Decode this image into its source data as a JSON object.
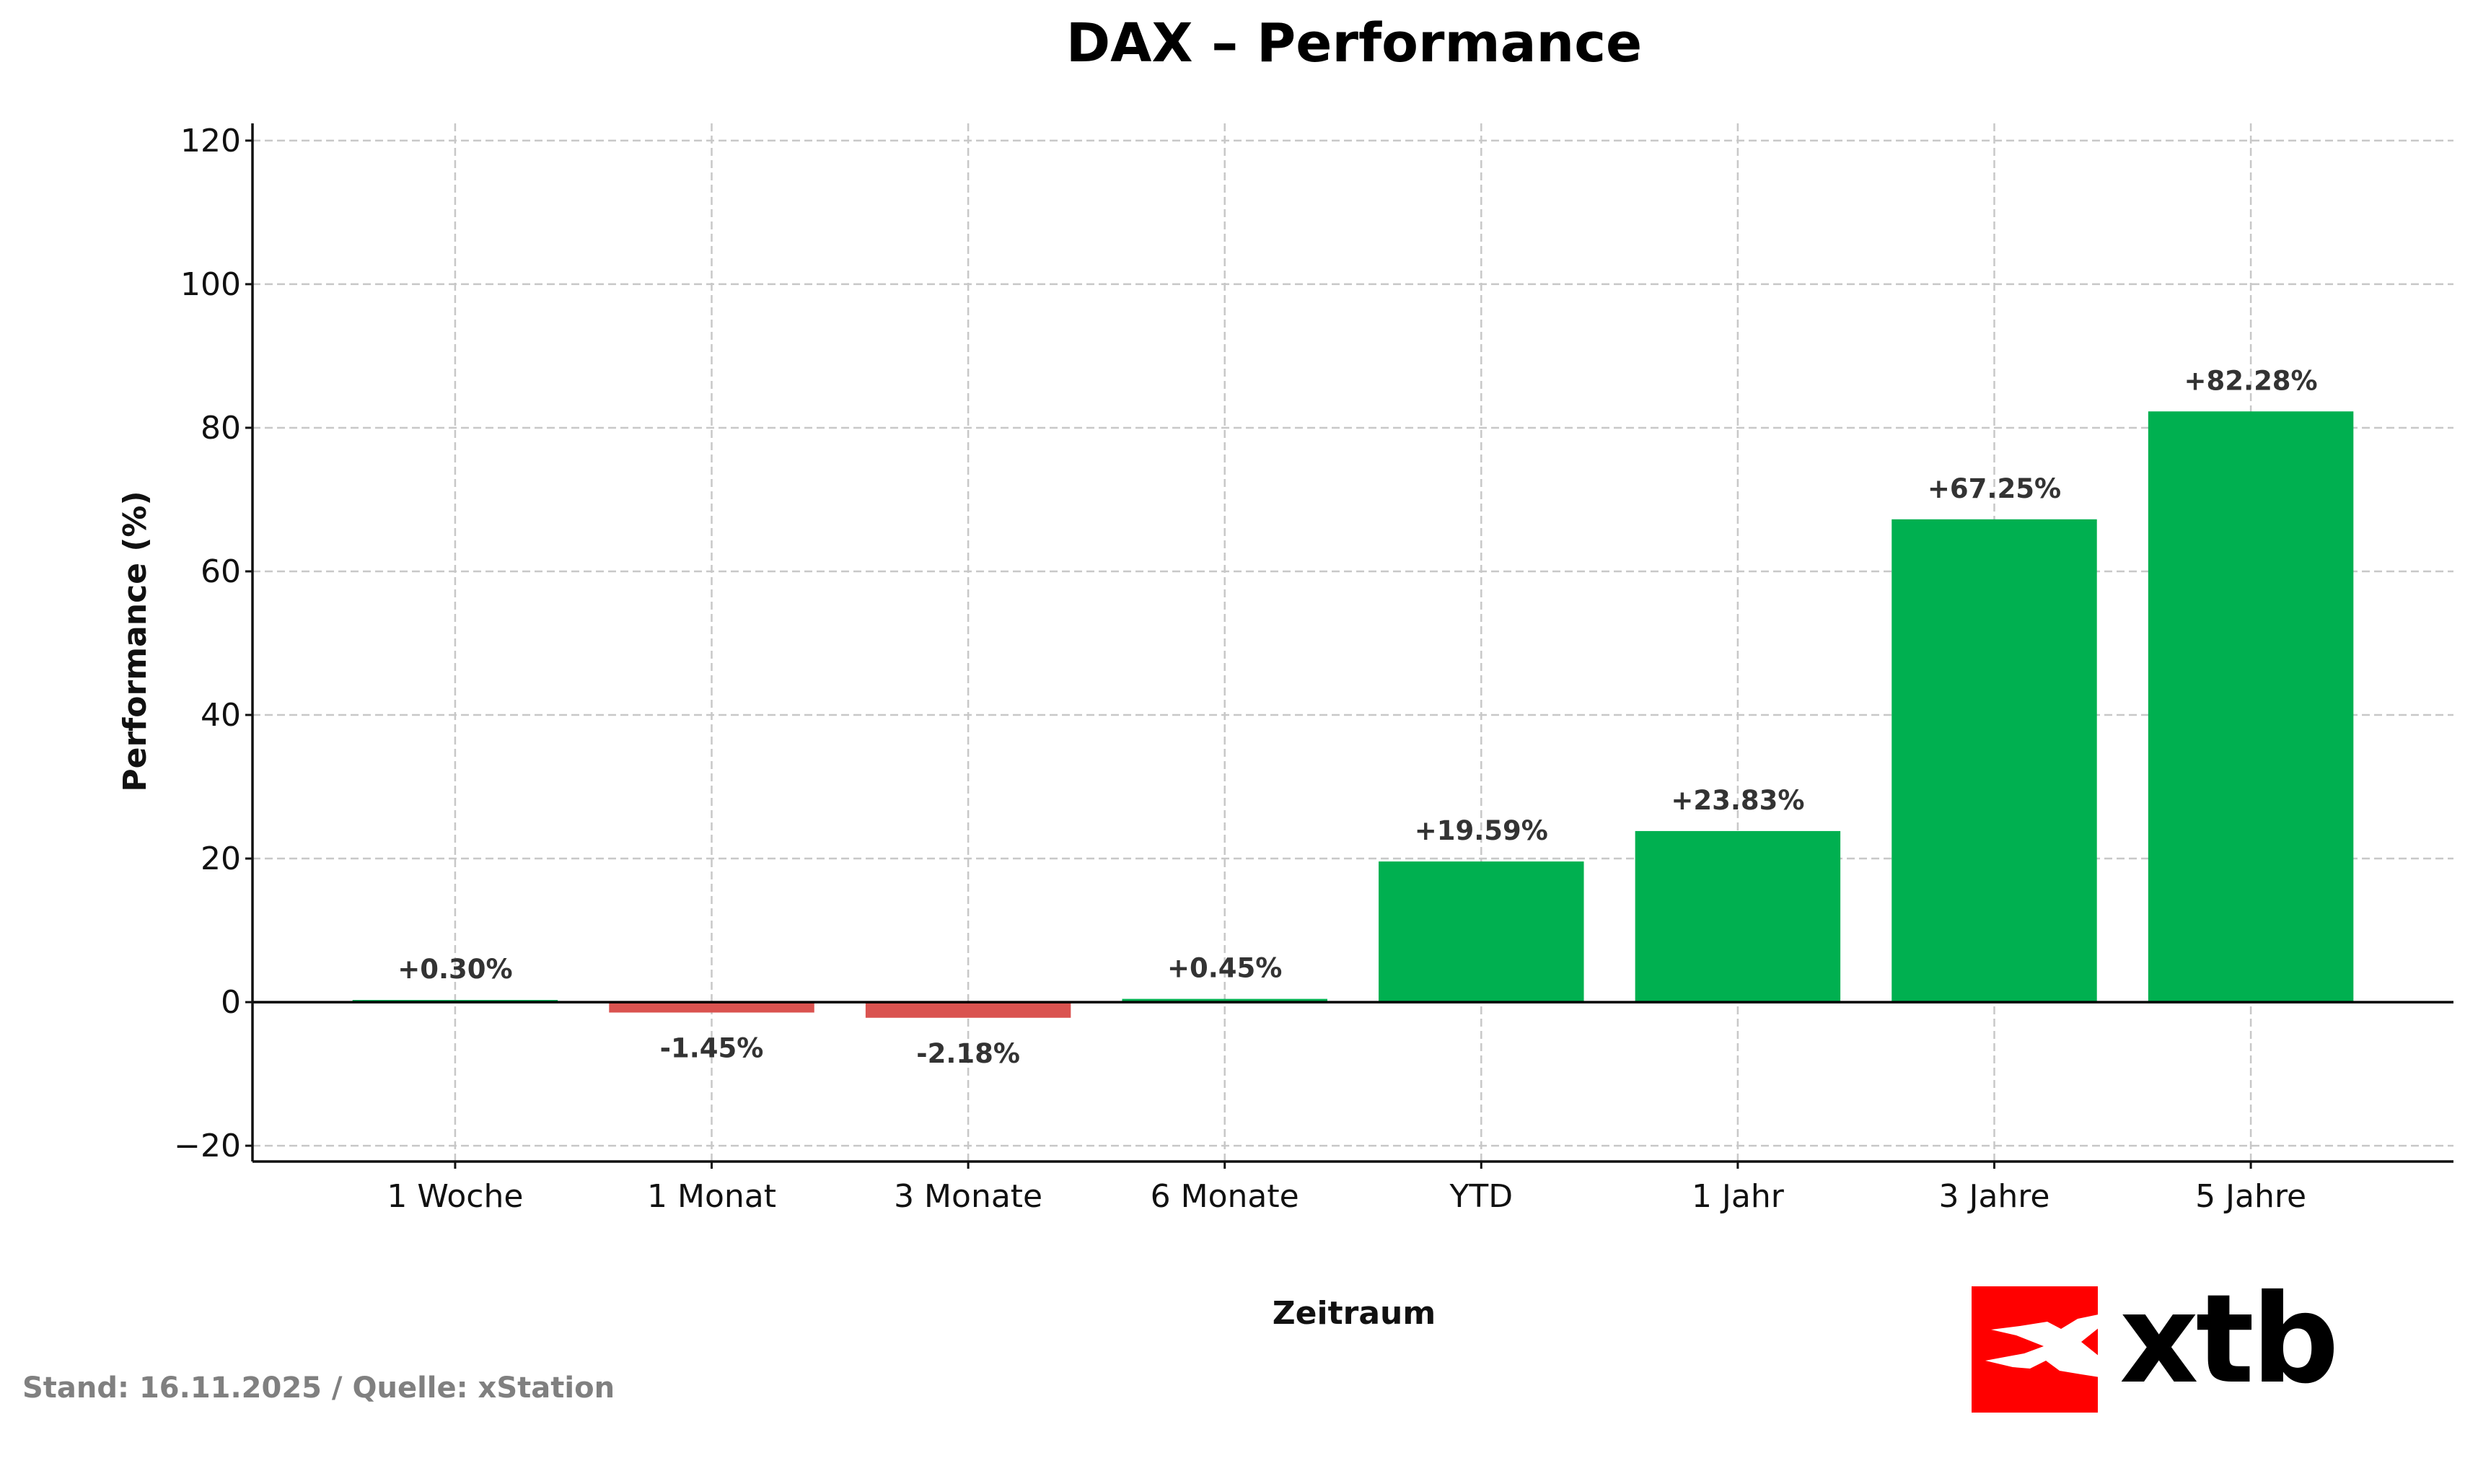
{
  "chart_data": {
    "type": "bar",
    "title": "DAX – Performance",
    "xlabel": "Zeitraum",
    "ylabel": "Performance (%)",
    "categories": [
      "1 Woche",
      "1 Monat",
      "3 Monate",
      "6 Monate",
      "YTD",
      "1 Jahr",
      "3 Jahre",
      "5 Jahre"
    ],
    "values": [
      0.3,
      -1.45,
      -2.18,
      0.45,
      19.59,
      23.83,
      67.25,
      82.28
    ],
    "data_labels": [
      "+0.30%",
      "-1.45%",
      "-2.18%",
      "+0.45%",
      "+19.59%",
      "+23.83%",
      "+67.25%",
      "+82.28%"
    ],
    "ylim": [
      -22.2,
      122.4
    ],
    "yticks": [
      -20,
      0,
      20,
      40,
      60,
      80,
      100,
      120
    ],
    "ytick_labels": [
      "−20",
      "0",
      "20",
      "40",
      "60",
      "80",
      "100",
      "120"
    ],
    "grid": true,
    "colors": {
      "positive": "#00B050",
      "negative": "#DA5350"
    }
  },
  "footer": {
    "source": "Stand: 16.11.2025 / Quelle: xStation"
  },
  "logo": {
    "text": "xtb",
    "color": "#FF0000"
  }
}
